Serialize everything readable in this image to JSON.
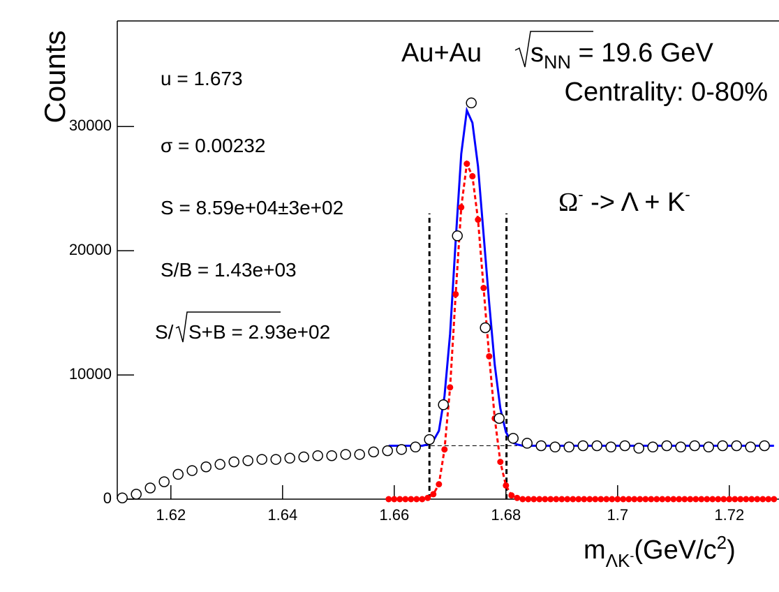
{
  "chart_data": {
    "type": "scatter",
    "ylabel": "Counts",
    "xlabel": {
      "main": "m",
      "sub": "ΛK",
      "subsup": "-",
      "unit": "(GeV/c",
      "unit_sup": "2",
      "close": ")"
    },
    "xlim": [
      1.6104,
      1.7289
    ],
    "ylim": [
      0,
      38500
    ],
    "xticks": [
      1.62,
      1.64,
      1.66,
      1.68,
      1.7,
      1.72
    ],
    "yticks": [
      0,
      10000,
      20000,
      30000
    ],
    "stats": [
      "u = 1.673",
      "σ = 0.00232",
      "S = 8.59e+04±3e+02",
      "S/B = 1.43e+03"
    ],
    "significance": {
      "prefix": "S/",
      "radicand": "S+B",
      "suffix": " = 2.93e+02"
    },
    "energy": {
      "prefix": "Au+Au",
      "radicand": "s",
      "sub": "NN",
      "suffix": " = 19.6 GeV"
    },
    "centrality": "Centrality: 0-80%",
    "decay": {
      "omega": "Ω",
      "omega_sup": "-",
      "middle": " -> Λ + K",
      "k_sup": "-"
    },
    "background_level": 4300,
    "background_range": [
      1.659,
      1.682
    ],
    "signal_window": [
      1.6663,
      1.6801
    ],
    "signal_window_height": 23000,
    "series": [
      {
        "color": "#000000",
        "style": "open-circle",
        "x": [
          1.6113,
          1.6138,
          1.6163,
          1.6188,
          1.6213,
          1.6238,
          1.6263,
          1.6288,
          1.6313,
          1.6338,
          1.6363,
          1.6388,
          1.6413,
          1.6438,
          1.6463,
          1.6488,
          1.6513,
          1.6538,
          1.6563,
          1.6588,
          1.6613,
          1.6638,
          1.6663,
          1.6688,
          1.6713,
          1.6738,
          1.6763,
          1.6788,
          1.6813,
          1.6838,
          1.6863,
          1.6888,
          1.6913,
          1.6938,
          1.6963,
          1.6988,
          1.7013,
          1.7038,
          1.7063,
          1.7088,
          1.7113,
          1.7138,
          1.7163,
          1.7188,
          1.7213,
          1.7238,
          1.7263
        ],
        "values": [
          100,
          400,
          900,
          1400,
          2000,
          2300,
          2600,
          2800,
          3000,
          3100,
          3200,
          3200,
          3300,
          3400,
          3500,
          3500,
          3600,
          3600,
          3800,
          3900,
          4000,
          4200,
          4800,
          7600,
          21200,
          31900,
          13800,
          6500,
          4900,
          4500,
          4300,
          4200,
          4200,
          4300,
          4300,
          4200,
          4300,
          4100,
          4200,
          4300,
          4200,
          4300,
          4200,
          4300,
          4300,
          4200,
          4300
        ]
      },
      {
        "color": "#ff0000",
        "style": "dashed-dots",
        "x": [
          1.659,
          1.66,
          1.661,
          1.662,
          1.663,
          1.664,
          1.665,
          1.666,
          1.667,
          1.668,
          1.669,
          1.67,
          1.671,
          1.672,
          1.673,
          1.674,
          1.675,
          1.676,
          1.677,
          1.678,
          1.679,
          1.68,
          1.681,
          1.682,
          1.683,
          1.684,
          1.685,
          1.686,
          1.687,
          1.688,
          1.689,
          1.69,
          1.691,
          1.692,
          1.693,
          1.694,
          1.695,
          1.696,
          1.697,
          1.698,
          1.699,
          1.7,
          1.701,
          1.702,
          1.703,
          1.704,
          1.705,
          1.706,
          1.707,
          1.708,
          1.709,
          1.71,
          1.711,
          1.712,
          1.713,
          1.714,
          1.715,
          1.716,
          1.717,
          1.718,
          1.719,
          1.72,
          1.721,
          1.722,
          1.723,
          1.724,
          1.725,
          1.726,
          1.727,
          1.728
        ],
        "values": [
          0,
          0,
          0,
          0,
          0,
          0,
          0,
          100,
          400,
          1200,
          4000,
          9000,
          16500,
          23500,
          27000,
          26000,
          22500,
          17000,
          11500,
          6500,
          3000,
          1100,
          300,
          100,
          0,
          0,
          0,
          0,
          0,
          0,
          0,
          0,
          0,
          0,
          0,
          0,
          0,
          0,
          0,
          0,
          0,
          0,
          0,
          0,
          0,
          0,
          0,
          0,
          0,
          0,
          0,
          0,
          0,
          0,
          0,
          0,
          0,
          0,
          0,
          0,
          0,
          0,
          0,
          0,
          0,
          0,
          0,
          0,
          0,
          0
        ]
      },
      {
        "color": "#0000ff",
        "style": "line",
        "x": [
          1.659,
          1.66,
          1.661,
          1.662,
          1.663,
          1.664,
          1.665,
          1.666,
          1.667,
          1.668,
          1.669,
          1.67,
          1.671,
          1.672,
          1.673,
          1.674,
          1.675,
          1.676,
          1.677,
          1.678,
          1.679,
          1.68,
          1.681,
          1.682,
          1.683,
          1.684,
          1.685,
          1.686,
          1.687,
          1.688,
          1.689,
          1.69,
          1.691,
          1.692,
          1.693,
          1.694,
          1.695,
          1.696,
          1.697,
          1.698,
          1.699,
          1.7,
          1.701,
          1.702,
          1.703,
          1.704,
          1.705,
          1.706,
          1.707,
          1.708,
          1.709,
          1.71,
          1.711,
          1.712,
          1.713,
          1.714,
          1.715,
          1.716,
          1.717,
          1.718,
          1.719,
          1.72,
          1.721,
          1.722,
          1.723,
          1.724,
          1.725,
          1.726,
          1.727,
          1.728
        ],
        "values": [
          4300,
          4300,
          4300,
          4300,
          4300,
          4300,
          4300,
          4400,
          4700,
          5500,
          8300,
          13300,
          20800,
          27800,
          31300,
          30300,
          26800,
          21300,
          15800,
          10800,
          7300,
          5400,
          4600,
          4400,
          4300,
          4300,
          4300,
          4300,
          4300,
          4300,
          4300,
          4300,
          4300,
          4300,
          4300,
          4300,
          4300,
          4300,
          4300,
          4300,
          4300,
          4300,
          4300,
          4300,
          4300,
          4300,
          4300,
          4300,
          4300,
          4300,
          4300,
          4300,
          4300,
          4300,
          4300,
          4300,
          4300,
          4300,
          4300,
          4300,
          4300,
          4300,
          4300,
          4300,
          4300,
          4300,
          4300,
          4300,
          4300,
          4300
        ]
      }
    ]
  }
}
